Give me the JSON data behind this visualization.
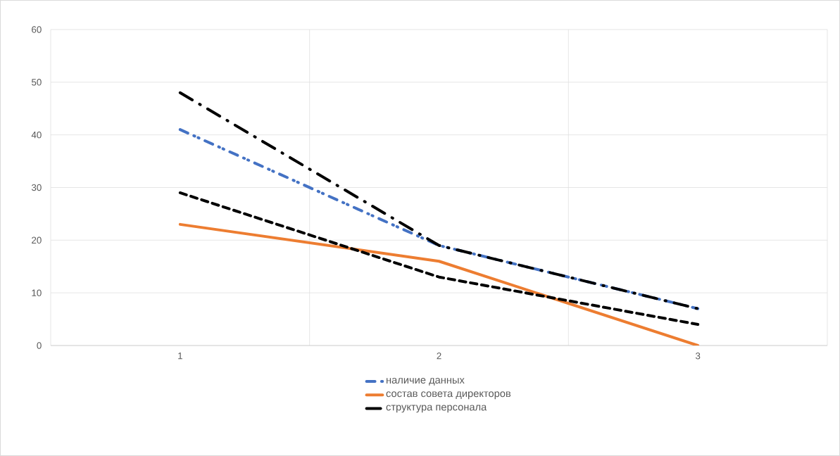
{
  "chart_data": {
    "type": "line",
    "categories": [
      "1",
      "2",
      "3"
    ],
    "ylim": [
      0,
      60
    ],
    "yticks": [
      0,
      10,
      20,
      30,
      40,
      50,
      60
    ],
    "grid": true,
    "legend": "bottom",
    "marker": "none",
    "series": [
      {
        "name": "наличие данных",
        "color": "#4472c4",
        "line_style": "dashdotdot",
        "values": [
          41,
          19,
          7
        ]
      },
      {
        "name": "состав совета директоров",
        "color": "#ed7d31",
        "line_style": "solid",
        "values": [
          23,
          16,
          0
        ]
      },
      {
        "name": "структура персонала",
        "color": "#000000",
        "line_style": "longdashdot",
        "values": [
          48,
          19,
          7
        ]
      },
      {
        "color": "#000000",
        "line_style": "dashed",
        "values": [
          29,
          13,
          4
        ]
      }
    ]
  }
}
